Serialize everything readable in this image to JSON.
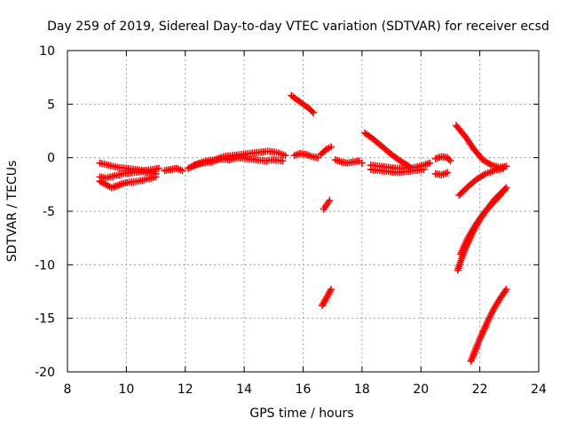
{
  "chart_data": {
    "type": "scatter",
    "title": "Day 259 of 2019, Sidereal Day-to-day VTEC variation (SDTVAR) for receiver ecsd",
    "xlabel": "GPS time / hours",
    "ylabel": "SDTVAR / TECUs",
    "xlim": [
      8,
      24
    ],
    "ylim": [
      -20,
      10
    ],
    "xticks": [
      "8",
      "10",
      "12",
      "14",
      "16",
      "18",
      "20",
      "22",
      "24"
    ],
    "yticks": [
      "10",
      "5",
      "0",
      "-5",
      "-10",
      "-15",
      "-20"
    ],
    "grid": true,
    "marker": "+",
    "color": "#ff0000",
    "series": [
      {
        "x": [
          9.1,
          9.4,
          9.7,
          10.0,
          10.3,
          10.6,
          10.9,
          11.1
        ],
        "y": [
          -0.5,
          -0.7,
          -0.9,
          -1.0,
          -1.1,
          -1.2,
          -1.1,
          -1.0
        ]
      },
      {
        "x": [
          9.1,
          9.3,
          9.6,
          9.9,
          10.2,
          10.5,
          10.8,
          11.0
        ],
        "y": [
          -1.8,
          -1.9,
          -1.7,
          -1.5,
          -1.4,
          -1.3,
          -1.4,
          -1.5
        ]
      },
      {
        "x": [
          9.1,
          9.3,
          9.5,
          9.7,
          9.9,
          10.1,
          10.4,
          10.7,
          11.0
        ],
        "y": [
          -2.2,
          -2.5,
          -2.8,
          -2.6,
          -2.4,
          -2.3,
          -2.2,
          -2.0,
          -1.8
        ]
      },
      {
        "x": [
          11.3,
          11.5,
          11.7,
          11.9
        ],
        "y": [
          -1.2,
          -1.1,
          -1.0,
          -1.2
        ]
      },
      {
        "x": [
          12.1,
          12.4,
          12.7,
          13.0,
          13.3,
          13.6,
          13.9,
          14.2,
          14.5,
          14.8,
          15.1,
          15.4
        ],
        "y": [
          -1.0,
          -0.6,
          -0.3,
          -0.2,
          0.1,
          0.2,
          0.3,
          0.4,
          0.5,
          0.6,
          0.5,
          0.2
        ]
      },
      {
        "x": [
          12.3,
          12.6,
          12.9,
          13.2,
          13.5,
          13.8,
          14.1,
          14.4,
          14.7,
          15.0,
          15.3
        ],
        "y": [
          -0.7,
          -0.5,
          -0.4,
          -0.1,
          -0.2,
          0.0,
          -0.1,
          -0.2,
          -0.3,
          -0.2,
          -0.3
        ]
      },
      {
        "x": [
          15.6,
          15.8,
          16.0,
          16.2,
          16.35
        ],
        "y": [
          5.8,
          5.4,
          5.0,
          4.6,
          4.2
        ]
      },
      {
        "x": [
          15.7,
          15.9,
          16.1,
          16.3,
          16.5
        ],
        "y": [
          0.2,
          0.4,
          0.3,
          0.1,
          0.0
        ]
      },
      {
        "x": [
          16.6,
          16.8,
          16.95
        ],
        "y": [
          0.3,
          0.8,
          1.0
        ]
      },
      {
        "x": [
          16.7,
          16.8,
          16.9
        ],
        "y": [
          -4.8,
          -4.4,
          -4.0
        ]
      },
      {
        "x": [
          16.65,
          16.75,
          16.85,
          16.95
        ],
        "y": [
          -13.8,
          -13.3,
          -12.8,
          -12.3
        ]
      },
      {
        "x": [
          17.1,
          17.3,
          17.5,
          17.7,
          17.9,
          18.0
        ],
        "y": [
          -0.2,
          -0.4,
          -0.5,
          -0.4,
          -0.3,
          -0.5
        ]
      },
      {
        "x": [
          18.1,
          18.4,
          18.7,
          19.0,
          19.3,
          19.6
        ],
        "y": [
          2.3,
          1.7,
          1.0,
          0.3,
          -0.3,
          -0.8
        ]
      },
      {
        "x": [
          18.3,
          18.6,
          18.9,
          19.2,
          19.5,
          19.8,
          20.1,
          20.3
        ],
        "y": [
          -0.7,
          -0.8,
          -0.9,
          -1.0,
          -1.0,
          -0.9,
          -0.7,
          -0.5
        ]
      },
      {
        "x": [
          18.3,
          18.6,
          18.9,
          19.2,
          19.5,
          19.8,
          20.1
        ],
        "y": [
          -1.1,
          -1.2,
          -1.3,
          -1.4,
          -1.3,
          -1.2,
          -1.1
        ]
      },
      {
        "x": [
          20.5,
          20.7,
          20.9,
          21.0
        ],
        "y": [
          -0.1,
          0.1,
          0.0,
          -0.3
        ]
      },
      {
        "x": [
          20.5,
          20.7,
          20.9
        ],
        "y": [
          -1.5,
          -1.6,
          -1.4
        ]
      },
      {
        "x": [
          21.2,
          21.5,
          21.8,
          22.1,
          22.4,
          22.7,
          22.9
        ],
        "y": [
          3.0,
          2.0,
          0.8,
          -0.2,
          -0.7,
          -0.9,
          -0.8
        ]
      },
      {
        "x": [
          21.3,
          21.6,
          21.9,
          22.2,
          22.5,
          22.8
        ],
        "y": [
          -3.5,
          -2.7,
          -2.0,
          -1.5,
          -1.2,
          -1.0
        ]
      },
      {
        "x": [
          21.25,
          21.5,
          21.75,
          22.0,
          22.25,
          22.5,
          22.75,
          22.9
        ],
        "y": [
          -10.5,
          -8.5,
          -7.0,
          -5.8,
          -4.8,
          -3.9,
          -3.2,
          -2.8
        ]
      },
      {
        "x": [
          21.35,
          21.6,
          21.85,
          22.1,
          22.35,
          22.6,
          22.85
        ],
        "y": [
          -9.0,
          -7.5,
          -6.3,
          -5.3,
          -4.5,
          -3.8,
          -3.0
        ]
      },
      {
        "x": [
          21.7,
          21.9,
          22.1,
          22.3,
          22.5,
          22.7,
          22.9
        ],
        "y": [
          -19.0,
          -17.6,
          -16.3,
          -15.1,
          -14.0,
          -13.1,
          -12.3
        ]
      }
    ]
  }
}
